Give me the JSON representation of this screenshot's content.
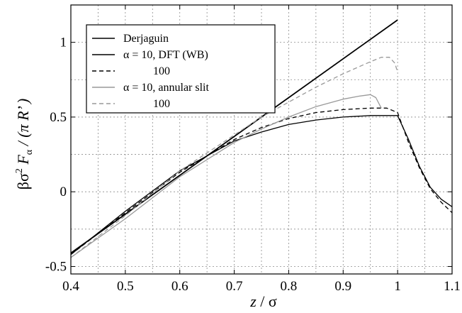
{
  "chart_data": {
    "type": "line",
    "title": "",
    "xlabel": {
      "var": "z",
      "sep": " / ",
      "unit": "σ"
    },
    "ylabel": {
      "pre": "βσ",
      "sup": "2",
      "mid": " F",
      "sub": "α",
      "post": " / (π R’ )"
    },
    "xlim": [
      0.4,
      1.1
    ],
    "ylim": [
      -0.55,
      1.25
    ],
    "xticks": [
      0.4,
      0.5,
      0.6,
      0.7,
      0.8,
      0.9,
      1.0,
      1.1
    ],
    "xtick_labels": [
      "0.4",
      "0.5",
      "0.6",
      "0.7",
      "0.8",
      "0.9",
      "1",
      "1.1"
    ],
    "yticks": [
      -0.5,
      0,
      0.5,
      1.0
    ],
    "ytick_labels": [
      "-0.5",
      "0",
      "0.5",
      "1"
    ],
    "grid": true,
    "legend_position": "top-left",
    "series": [
      {
        "name": "Derjaguin",
        "color": "#000000",
        "dash": "solid",
        "x": [
          0.4,
          1.0
        ],
        "y": [
          -0.41,
          1.15
        ]
      },
      {
        "name": "α = 10, DFT (WB)",
        "color": "#000000",
        "dash": "solid",
        "x": [
          0.4,
          0.5,
          0.6,
          0.7,
          0.75,
          0.8,
          0.85,
          0.9,
          0.95,
          0.98,
          1.0,
          1.02,
          1.04,
          1.06,
          1.08,
          1.1
        ],
        "y": [
          -0.42,
          -0.13,
          0.14,
          0.34,
          0.4,
          0.45,
          0.48,
          0.5,
          0.51,
          0.51,
          0.51,
          0.35,
          0.17,
          0.03,
          -0.05,
          -0.1
        ]
      },
      {
        "name": "100",
        "color": "#000000",
        "dash": "dashed",
        "x": [
          0.4,
          0.5,
          0.6,
          0.7,
          0.75,
          0.8,
          0.85,
          0.9,
          0.95,
          0.98,
          1.0,
          1.02,
          1.04,
          1.06,
          1.08,
          1.1
        ],
        "y": [
          -0.42,
          -0.14,
          0.13,
          0.35,
          0.43,
          0.49,
          0.53,
          0.55,
          0.56,
          0.56,
          0.53,
          0.33,
          0.16,
          0.02,
          -0.07,
          -0.14
        ]
      },
      {
        "name": "α = 10, annular slit",
        "color": "#999999",
        "dash": "solid",
        "x": [
          0.4,
          0.5,
          0.6,
          0.7,
          0.75,
          0.8,
          0.85,
          0.9,
          0.93,
          0.95,
          0.96,
          0.97
        ],
        "y": [
          -0.44,
          -0.18,
          0.1,
          0.33,
          0.42,
          0.5,
          0.57,
          0.62,
          0.64,
          0.65,
          0.63,
          0.56
        ]
      },
      {
        "name": "100",
        "color": "#999999",
        "dash": "dashed",
        "x": [
          0.4,
          0.5,
          0.6,
          0.7,
          0.75,
          0.8,
          0.85,
          0.9,
          0.95,
          0.97,
          0.985,
          0.995,
          1.0
        ],
        "y": [
          -0.44,
          -0.16,
          0.14,
          0.38,
          0.5,
          0.6,
          0.7,
          0.79,
          0.87,
          0.9,
          0.9,
          0.86,
          0.8
        ]
      }
    ]
  }
}
